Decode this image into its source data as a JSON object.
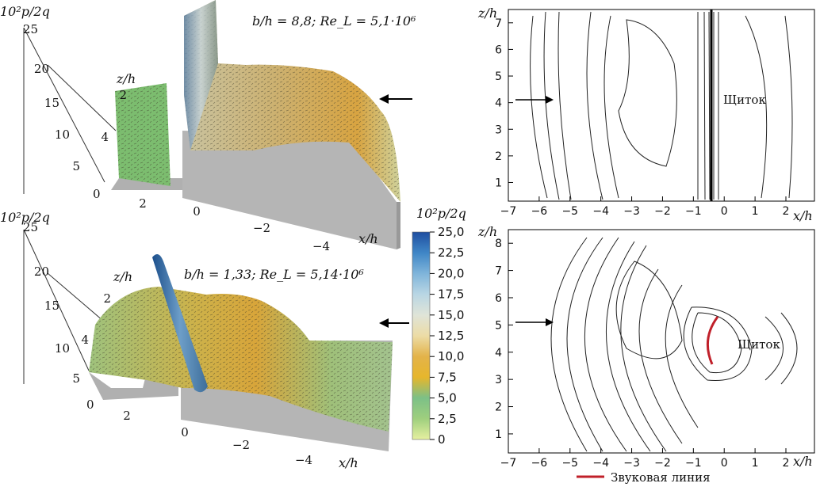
{
  "chart_data": [
    {
      "type": "surface",
      "panel": "top-left",
      "zlabel": "10²p/2q",
      "annotation": "b/h = 8,8; Re_L = 5,1·10⁶",
      "z_axis_label": "z/h",
      "x_axis_label": "x/h",
      "p_ticks": [
        "25",
        "20",
        "15",
        "10",
        "5"
      ],
      "z_ticks": [
        "2",
        "4"
      ],
      "x_ticks": [
        "2",
        "0",
        "−2",
        "−4"
      ],
      "zero_label": "0"
    },
    {
      "type": "surface",
      "panel": "bottom-left",
      "zlabel": "10²p/2q",
      "annotation": "b/h = 1,33; Re_L = 5,14·10⁶",
      "z_axis_label": "z/h",
      "x_axis_label": "x/h",
      "p_ticks": [
        "25",
        "20",
        "15",
        "10",
        "5"
      ],
      "z_ticks": [
        "2",
        "4"
      ],
      "x_ticks": [
        "2",
        "0",
        "−2",
        "−4"
      ],
      "zero_label": "0"
    },
    {
      "type": "colorbar",
      "title": "10²p/2q",
      "ticks": [
        "25,0",
        "22,5",
        "20,0",
        "17,5",
        "15,0",
        "12,5",
        "10,0",
        "7,5",
        "5,0",
        "2,5",
        "0"
      ],
      "values": [
        25.0,
        22.5,
        20.0,
        17.5,
        15.0,
        12.5,
        10.0,
        7.5,
        5.0,
        2.5,
        0
      ],
      "colors": [
        "#1a4fa0",
        "#2f7fc4",
        "#6aa8d4",
        "#a9cde0",
        "#dcdcc8",
        "#e8d59a",
        "#e2b040",
        "#d8b93a",
        "#9fcc6b",
        "#7fc27a",
        "#d9ec9b"
      ]
    },
    {
      "type": "contour",
      "panel": "top-right",
      "ylabel": "z/h",
      "xlabel": "x/h",
      "xlim": [
        -7,
        2
      ],
      "ylim": [
        0.3,
        7.5
      ],
      "x_ticks": [
        "−7",
        "−6",
        "−5",
        "−4",
        "−3",
        "−2",
        "−1",
        "0",
        "1",
        "2"
      ],
      "y_ticks": [
        "1",
        "2",
        "3",
        "4",
        "5",
        "6",
        "7"
      ],
      "annotation": "Щиток"
    },
    {
      "type": "contour",
      "panel": "bottom-right",
      "ylabel": "z/h",
      "xlabel": "x/h",
      "xlim": [
        -7,
        2
      ],
      "ylim": [
        0.3,
        8.5
      ],
      "x_ticks": [
        "−7",
        "−6",
        "−5",
        "−4",
        "−3",
        "−2",
        "−1",
        "0",
        "1",
        "2"
      ],
      "y_ticks": [
        "1",
        "2",
        "3",
        "4",
        "5",
        "6",
        "7",
        "8"
      ],
      "annotation": "Щиток",
      "legend": "Звуковая линия",
      "legend_color": "#c0202a"
    }
  ]
}
